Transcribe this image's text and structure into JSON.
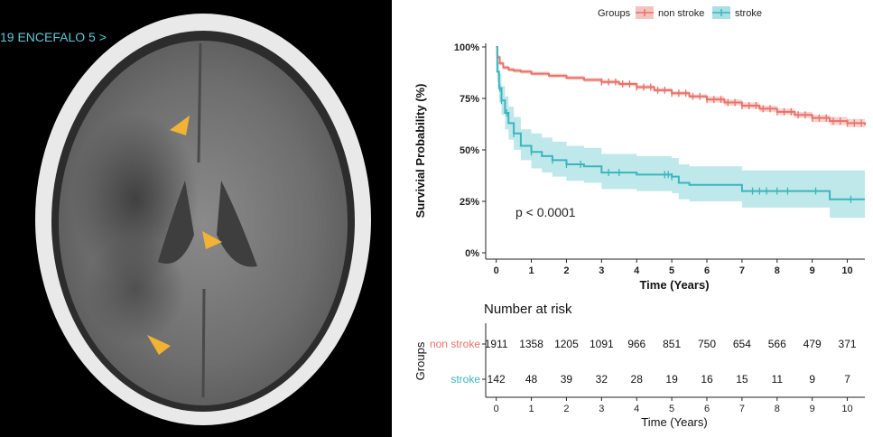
{
  "ct_image": {
    "series_label": "19 ENCEFALO 5 >",
    "arrow_color": "#f2b233",
    "arrow_count": 3
  },
  "chart_data": [
    {
      "type": "line",
      "subtype": "kaplan-meier",
      "legend": {
        "title": "Groups",
        "position": "top"
      },
      "ylabel": "Survivial Probability (%)",
      "xlabel": "Time (Years)",
      "xlim": [
        -0.3,
        10.5
      ],
      "ylim": [
        0,
        100
      ],
      "xticks": [
        0,
        1,
        2,
        3,
        4,
        5,
        6,
        7,
        8,
        9,
        10
      ],
      "yticks": [
        0,
        25,
        50,
        75,
        100
      ],
      "ytick_labels": [
        "0%",
        "25%",
        "50%",
        "75%",
        "100%"
      ],
      "annotation": "p < 0.0001",
      "series": [
        {
          "name": "non stroke",
          "color": "#e8736b",
          "band_color": "#f3c3bf",
          "x": [
            0,
            0.03,
            0.1,
            0.2,
            0.35,
            0.5,
            0.7,
            1.0,
            1.5,
            2.0,
            2.5,
            3.0,
            3.5,
            4.0,
            4.5,
            5.0,
            5.5,
            6.0,
            6.5,
            7.0,
            7.5,
            8.0,
            8.5,
            9.0,
            9.5,
            10.0,
            10.5
          ],
          "y": [
            100,
            95,
            92,
            90,
            89,
            88.5,
            88,
            87,
            86,
            85,
            84,
            83,
            82,
            80.5,
            79,
            77.5,
            76,
            74.5,
            73,
            71.5,
            70,
            68.5,
            67,
            65.5,
            64,
            63,
            62
          ],
          "lower": [
            100,
            94,
            91,
            89,
            88,
            87.5,
            87,
            86,
            85,
            84,
            83,
            82,
            81,
            79.5,
            78,
            76.5,
            75,
            73,
            71.5,
            70,
            68.5,
            67,
            65.5,
            63.5,
            62,
            61,
            60
          ],
          "upper": [
            100,
            96,
            93,
            91,
            90,
            89.5,
            89,
            88,
            87,
            86,
            85,
            84,
            83,
            81.5,
            80,
            78.5,
            77,
            76,
            74.5,
            73,
            71.5,
            70,
            68.5,
            67,
            66,
            65,
            64
          ],
          "censor_x": [
            3.0,
            3.2,
            3.4,
            3.6,
            3.8,
            4.0,
            4.2,
            4.4,
            4.6,
            4.8,
            5.0,
            5.2,
            5.4,
            5.6,
            5.8,
            6.0,
            6.2,
            6.4,
            6.6,
            6.8,
            7.0,
            7.2,
            7.4,
            7.6,
            7.8,
            8.0,
            8.2,
            8.4,
            8.6,
            8.8,
            9.0,
            9.2,
            9.4,
            9.6,
            9.8,
            10.0,
            10.2,
            10.4
          ]
        },
        {
          "name": "stroke",
          "color": "#3bb5bd",
          "band_color": "#a9e0e3",
          "x": [
            0,
            0.03,
            0.08,
            0.15,
            0.25,
            0.35,
            0.5,
            0.7,
            1.0,
            1.3,
            1.6,
            2.0,
            2.5,
            3.0,
            4.0,
            5.0,
            5.2,
            5.5,
            6.0,
            7.0,
            8.0,
            9.0,
            9.5,
            10.0,
            10.5
          ],
          "y": [
            100,
            88,
            80,
            74,
            68,
            63,
            58,
            52,
            49,
            47,
            45,
            43,
            42,
            39,
            38,
            37,
            34,
            33,
            33,
            30,
            30,
            30,
            26,
            26,
            26
          ],
          "lower": [
            100,
            83,
            73,
            67,
            60,
            55,
            50,
            45,
            41,
            39,
            37,
            35,
            34,
            31,
            30,
            29,
            26,
            25,
            25,
            22,
            22,
            22,
            17,
            17,
            17
          ],
          "upper": [
            100,
            93,
            87,
            81,
            76,
            71,
            66,
            60,
            58,
            56,
            54,
            52,
            51,
            48,
            47,
            46,
            43,
            42,
            42,
            40,
            40,
            40,
            40,
            40,
            40
          ],
          "censor_x": [
            0.1,
            0.15,
            0.3,
            0.5,
            1.0,
            1.6,
            2.0,
            2.4,
            3.2,
            3.5,
            4.8,
            4.9,
            5.0,
            7.3,
            7.5,
            7.7,
            8.0,
            8.3,
            9.1,
            10.1
          ]
        }
      ]
    },
    {
      "type": "table",
      "title": "Number at risk",
      "ylabel": "Groups",
      "xlabel": "Time (Years)",
      "columns": [
        0,
        1,
        2,
        3,
        4,
        5,
        6,
        7,
        8,
        9,
        10
      ],
      "rows": [
        {
          "name": "non stroke",
          "color": "#e8736b",
          "values": [
            1911,
            1358,
            1205,
            1091,
            966,
            851,
            750,
            654,
            566,
            479,
            371
          ]
        },
        {
          "name": "stroke",
          "color": "#3bb5bd",
          "values": [
            142,
            48,
            39,
            32,
            28,
            19,
            16,
            15,
            11,
            9,
            7
          ]
        }
      ]
    }
  ]
}
